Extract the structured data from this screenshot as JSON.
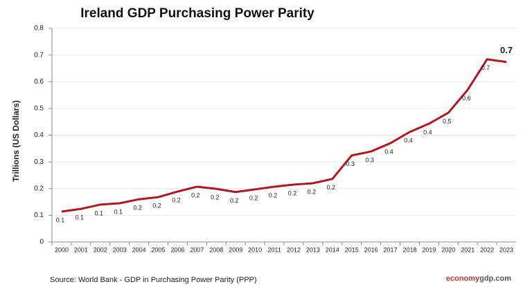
{
  "chart_data": {
    "type": "line",
    "title": "Ireland GDP Purchasing Power Parity",
    "y_label": "Trillions (US Dollars)",
    "source": "Source:  World Bank -  GDP  in Purchasing Power Parity (PPP)",
    "brand": [
      "economy",
      "gdp.com"
    ],
    "categories": [
      "2000",
      "2001",
      "2002",
      "2003",
      "2004",
      "2005",
      "2006",
      "2007",
      "2008",
      "2009",
      "2010",
      "2011",
      "2012",
      "2013",
      "2014",
      "2015",
      "2016",
      "2017",
      "2018",
      "2019",
      "2020",
      "2021",
      "2022",
      "2023"
    ],
    "series": [
      {
        "name": "Ireland GDP PPP",
        "color": "#b0161b",
        "values": [
          0.114,
          0.124,
          0.14,
          0.145,
          0.16,
          0.168,
          0.189,
          0.207,
          0.199,
          0.187,
          0.197,
          0.207,
          0.215,
          0.22,
          0.236,
          0.324,
          0.339,
          0.37,
          0.412,
          0.443,
          0.484,
          0.57,
          0.684,
          0.674
        ],
        "value_labels": [
          "0.1",
          "0.1",
          "0.1",
          "0.1",
          "0.2",
          "0.2",
          "0.2",
          "0.2",
          "0.2",
          "0.2",
          "0.2",
          "0.2",
          "0.2",
          "0.2",
          "0.2",
          "0.3",
          "0.3",
          "0.4",
          "0.4",
          "0.4",
          "0.5",
          "0.6",
          "0.7",
          "0.7"
        ]
      }
    ],
    "ylim": [
      0,
      0.8
    ],
    "yticks": [
      0,
      0.1,
      0.2,
      0.3,
      0.4,
      0.5,
      0.6,
      0.7,
      0.8
    ],
    "grid": true
  }
}
